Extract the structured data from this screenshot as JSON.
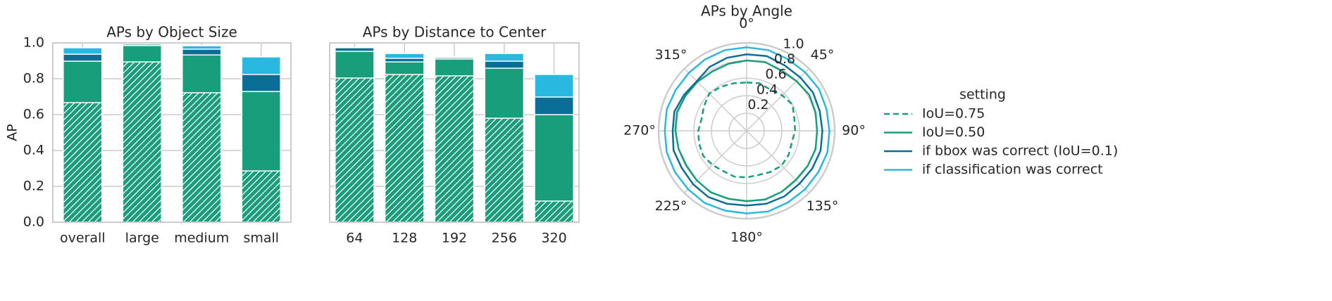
{
  "chart_data": [
    {
      "type": "bar",
      "title": "APs by Object Size",
      "ylabel": "AP",
      "categories": [
        "overall",
        "large",
        "medium",
        "small"
      ],
      "series": [
        {
          "color": "#199e7b",
          "hatch": true,
          "values": [
            0.667,
            0.894,
            0.722,
            0.286
          ]
        },
        {
          "color": "#199e7b",
          "values": [
            0.898,
            0.985,
            0.933,
            0.729
          ]
        },
        {
          "color": "#0a6e96",
          "values": [
            0.937,
            0.993,
            0.965,
            0.824
          ]
        },
        {
          "color": "#29b8e0",
          "values": [
            0.973,
            0.997,
            0.984,
            0.922
          ]
        }
      ],
      "ylim": [
        0,
        1
      ],
      "yticks": [
        {
          "value": 0,
          "label": "0.0"
        },
        0.2,
        0.4,
        0.6,
        0.8,
        {
          "value": 1,
          "label": "1.0"
        }
      ],
      "grid": true,
      "ytick_labels": true
    },
    {
      "type": "bar",
      "title": "APs by Distance to Center",
      "categories": [
        "64",
        "128",
        "192",
        "256",
        "320"
      ],
      "series": [
        {
          "color": "#199e7b",
          "hatch": true,
          "values": [
            0.804,
            0.824,
            0.816,
            0.58,
            0.118
          ]
        },
        {
          "color": "#199e7b",
          "values": [
            0.953,
            0.894,
            0.91,
            0.859,
            0.6
          ]
        },
        {
          "color": "#0a6e96",
          "values": [
            0.973,
            0.914,
            0.918,
            0.898,
            0.698
          ]
        },
        {
          "color": "#29b8e0",
          "values": [
            0.973,
            0.941,
            0.922,
            0.941,
            0.824
          ]
        }
      ],
      "ylim": [
        0,
        1
      ],
      "yticks": [
        0,
        0.2,
        0.4,
        0.6,
        0.8,
        1
      ],
      "grid": true,
      "ytick_labels": false
    },
    {
      "type": "polar",
      "title": "APs by Angle",
      "x": [
        0,
        15,
        30,
        45,
        60,
        75,
        90,
        105,
        120,
        135,
        150,
        165,
        180,
        195,
        210,
        225,
        240,
        255,
        270,
        285,
        300,
        315,
        330,
        345
      ],
      "series": [
        {
          "name": "IoU=0.75",
          "color": "#199e7b",
          "linestyle": "dashed",
          "values": [
            0.55,
            0.56,
            0.54,
            0.57,
            0.6,
            0.56,
            0.55,
            0.53,
            0.55,
            0.56,
            0.54,
            0.52,
            0.53,
            0.54,
            0.53,
            0.55,
            0.57,
            0.56,
            0.55,
            0.53,
            0.56,
            0.6,
            0.58,
            0.56
          ]
        },
        {
          "name": "IoU=0.50",
          "color": "#199e7b",
          "linestyle": "solid",
          "values": [
            0.8,
            0.81,
            0.79,
            0.8,
            0.82,
            0.81,
            0.8,
            0.81,
            0.8,
            0.79,
            0.8,
            0.81,
            0.8,
            0.8,
            0.81,
            0.8,
            0.79,
            0.8,
            0.81,
            0.82,
            0.8,
            0.79,
            0.78,
            0.79
          ]
        },
        {
          "name": "if bbox was correct (IoU=0.1)",
          "color": "#0a6e96",
          "linestyle": "solid",
          "values": [
            0.87,
            0.88,
            0.86,
            0.86,
            0.87,
            0.86,
            0.86,
            0.87,
            0.86,
            0.85,
            0.86,
            0.86,
            0.85,
            0.86,
            0.87,
            0.86,
            0.85,
            0.86,
            0.84,
            0.85,
            0.82,
            0.8,
            0.84,
            0.86
          ]
        },
        {
          "name": "if classification was correct",
          "color": "#29b8e0",
          "linestyle": "solid",
          "values": [
            0.95,
            0.95,
            0.94,
            0.94,
            0.95,
            0.94,
            0.94,
            0.95,
            0.94,
            0.94,
            0.94,
            0.95,
            0.94,
            0.94,
            0.95,
            0.94,
            0.94,
            0.94,
            0.93,
            0.94,
            0.93,
            0.93,
            0.94,
            0.95
          ]
        }
      ],
      "rlim": [
        0,
        1
      ],
      "rticks": [
        0.2,
        0.4,
        0.6,
        0.8,
        {
          "value": 1,
          "label": "1.0"
        }
      ],
      "xticks": [
        {
          "value": 0,
          "label": "0°"
        },
        {
          "value": 45,
          "label": "45°"
        },
        {
          "value": 90,
          "label": "90°"
        },
        {
          "value": 135,
          "label": "135°"
        },
        {
          "value": 180,
          "label": "180°"
        },
        {
          "value": 225,
          "label": "225°"
        },
        {
          "value": 270,
          "label": "270°"
        },
        {
          "value": 315,
          "label": "315°"
        }
      ],
      "legend_title": "setting",
      "legend": "right",
      "grid": true
    }
  ]
}
